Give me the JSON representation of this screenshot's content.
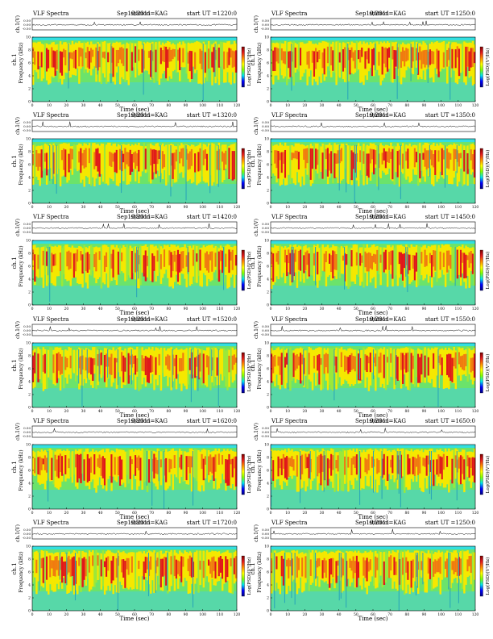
{
  "chart_data": {
    "type": "heatmap",
    "common": {
      "title_prefix": "VLF Spectra",
      "date": "Sep19/2011",
      "station": "station=KAG",
      "start_label": "start  UT",
      "ylabel_top": "ch.1(V)",
      "top_ticks": [
        "0.50",
        "0.00",
        "-0.50"
      ],
      "ylabel_spec": "ch.1",
      "ylabel_freq": "Frequency  (kHz)",
      "y_ticks": [
        "0",
        "2",
        "4",
        "6",
        "8",
        "10"
      ],
      "xlabel": "Time  (sec)",
      "x_ticks": [
        "0",
        "10",
        "20",
        "30",
        "40",
        "50",
        "60",
        "70",
        "80",
        "90",
        "100",
        "110",
        "120"
      ],
      "xlim": [
        0,
        120
      ],
      "ylim": [
        0,
        10
      ],
      "colorbar_label": "Log(PSD)(V²/Hz)",
      "colorbar_colors": [
        "#7a0000",
        "#e41a1c",
        "#ff8c00",
        "#ffff00",
        "#7fff00",
        "#00e5ee",
        "#0000ff",
        "#000080"
      ]
    },
    "panels": [
      {
        "start": "=1220:0"
      },
      {
        "start": "=1250:0"
      },
      {
        "start": "=1320:0"
      },
      {
        "start": "=1350:0"
      },
      {
        "start": "=1420:0"
      },
      {
        "start": "=1450:0"
      },
      {
        "start": "=1520:0"
      },
      {
        "start": "=1550:0"
      },
      {
        "start": "=1620:0"
      },
      {
        "start": "=1650:0"
      },
      {
        "start": "=1720:0"
      },
      {
        "start": "=1250:0"
      }
    ]
  }
}
